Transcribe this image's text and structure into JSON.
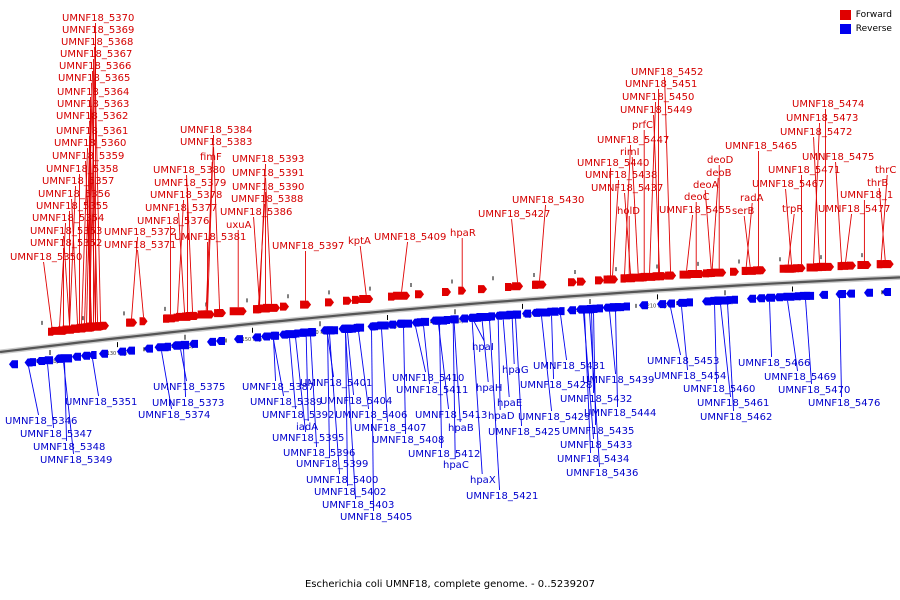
{
  "caption": "Escherichia coli UMNF18, complete genome. - 0..5239207",
  "legend": [
    {
      "label": "Forward",
      "color": "#e00000"
    },
    {
      "label": "Reverse",
      "color": "#0000ee"
    }
  ],
  "colors": {
    "forward": "#e00000",
    "reverse": "#0000ee",
    "backbone": "#555555"
  },
  "ticks": [
    "5120 kbp",
    "5130 kbp",
    "5140 kbp",
    "5150 kbp",
    "5160 kbp",
    "5170 kbp",
    "5180 kbp",
    "5190 kbp",
    "5200 kbp",
    "5210 kbp",
    "5220 kbp",
    "5230 kbp"
  ],
  "forward_genes": [
    "UMNF18_5350",
    "UMNF18_5352",
    "UMNF18_5353",
    "UMNF18_5354",
    "UMNF18_5355",
    "UMNF18_5356",
    "UMNF18_5357",
    "UMNF18_5358",
    "UMNF18_5359",
    "UMNF18_5360",
    "UMNF18_5361",
    "UMNF18_5362",
    "UMNF18_5363",
    "UMNF18_5364",
    "UMNF18_5365",
    "UMNF18_5366",
    "UMNF18_5367",
    "UMNF18_5368",
    "UMNF18_5369",
    "UMNF18_5370",
    "UMNF18_5371",
    "UMNF18_5372",
    "UMNF18_5376",
    "UMNF18_5377",
    "UMNF18_5378",
    "UMNF18_5379",
    "UMNF18_5380",
    "fimF",
    "UMNF18_5381",
    "UMNF18_5383",
    "UMNF18_5384",
    "uxuA",
    "UMNF18_5386",
    "UMNF18_5388",
    "UMNF18_5390",
    "UMNF18_5391",
    "UMNF18_5393",
    "UMNF18_5397",
    "kptA",
    "UMNF18_5409",
    "hpaR",
    "UMNF18_5427",
    "UMNF18_5430",
    "holD",
    "UMNF18_5437",
    "UMNF18_5438",
    "UMNF18_5440",
    "rimI",
    "UMNF18_5447",
    "prfC",
    "UMNF18_5449",
    "UMNF18_5450",
    "UMNF18_5451",
    "UMNF18_5452",
    "UMNF18_5455",
    "deoC",
    "deoA",
    "deoB",
    "deoD",
    "serB",
    "radA",
    "UMNF18_5465",
    "UMNF18_5467",
    "trpR",
    "UMNF18_5471",
    "UMNF18_5472",
    "UMNF18_5473",
    "UMNF18_5474",
    "UMNF18_5475",
    "UMNF18_5477",
    "UMNF18_1",
    "thrB",
    "thrC"
  ],
  "reverse_genes": [
    "UMNF18_5346",
    "UMNF18_5347",
    "UMNF18_5348",
    "UMNF18_5349",
    "UMNF18_5351",
    "UMNF18_5373",
    "UMNF18_5374",
    "UMNF18_5375",
    "UMNF18_5387",
    "UMNF18_5389",
    "UMNF18_5392",
    "iadA",
    "UMNF18_5395",
    "UMNF18_5396",
    "UMNF18_5399",
    "UMNF18_5400",
    "UMNF18_5401",
    "UMNF18_5402",
    "UMNF18_5403",
    "UMNF18_5404",
    "UMNF18_5405",
    "UMNF18_5406",
    "UMNF18_5407",
    "UMNF18_5408",
    "UMNF18_5410",
    "UMNF18_5411",
    "UMNF18_5412",
    "UMNF18_5413",
    "hpaB",
    "hpaC",
    "hpaI",
    "hpaH",
    "hpaD",
    "hpaX",
    "hpaE",
    "hpaG",
    "UMNF18_5421",
    "UMNF18_5425",
    "UMNF18_5428",
    "UMNF18_5429",
    "UMNF18_5431",
    "UMNF18_5432",
    "UMNF18_5433",
    "UMNF18_5434",
    "UMNF18_5435",
    "UMNF18_5436",
    "UMNF18_5439",
    "UMNF18_5444",
    "UMNF18_5453",
    "UMNF18_5454",
    "UMNF18_5460",
    "UMNF18_5461",
    "UMNF18_5462",
    "UMNF18_5466",
    "UMNF18_5469",
    "UMNF18_5470",
    "UMNF18_5476"
  ]
}
